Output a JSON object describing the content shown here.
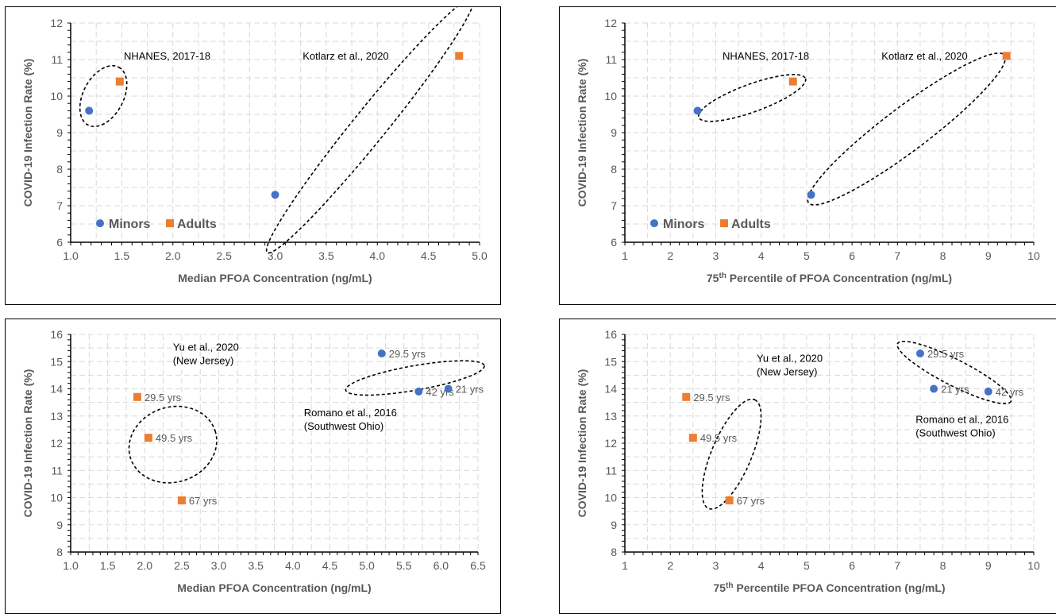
{
  "colors": {
    "minors": "#4472C4",
    "adults": "#ED7D31",
    "grid": "#d9d9d9",
    "axis": "#7f7f7f"
  },
  "chart_data": [
    {
      "type": "scatter",
      "xlabel": "Median PFOA Concentration (ng/mL)",
      "ylabel": "COVID-19 Infection Rate (%)",
      "xlim": [
        1.0,
        5.0
      ],
      "xstep": 0.5,
      "xdec": 1,
      "ylim": [
        6,
        12
      ],
      "ystep": 1,
      "legend": {
        "minors": "Minors",
        "adults": "Adults",
        "placement": "bottom-left"
      },
      "series": [
        {
          "name": "Minors",
          "marker": "circle",
          "points": [
            {
              "x": 1.18,
              "y": 9.6,
              "label": ""
            },
            {
              "x": 3.0,
              "y": 7.3,
              "label": ""
            }
          ]
        },
        {
          "name": "Adults",
          "marker": "square",
          "points": [
            {
              "x": 1.48,
              "y": 10.4,
              "label": ""
            },
            {
              "x": 4.8,
              "y": 11.1,
              "label": ""
            }
          ]
        }
      ],
      "annotations": [
        {
          "lines": [
            "NHANES, 2017-18"
          ],
          "x": 1.52,
          "y": 11.0
        },
        {
          "lines": [
            "Kotlarz et al., 2020"
          ],
          "x": 3.27,
          "y": 11.0
        }
      ],
      "ellipses": [
        {
          "cx": 1.32,
          "cy": 10.0,
          "rx": 0.32,
          "ry": 0.55,
          "angle": -62
        },
        {
          "cx": 3.93,
          "cy": 9.2,
          "rx": 1.6,
          "ry": 0.45,
          "angle": -51
        }
      ]
    },
    {
      "type": "scatter",
      "xlabel_pre": "75",
      "xlabel_sup": "th",
      "xlabel_post": " Percentile of PFOA Concentration (ng/mL)",
      "ylabel": "COVID-19 Infection Rate (%)",
      "xlim": [
        1,
        10
      ],
      "xstep": 1,
      "xdec": 0,
      "ylim": [
        6,
        12
      ],
      "ystep": 1,
      "legend": {
        "minors": "Minors",
        "adults": "Adults",
        "placement": "bottom-left"
      },
      "series": [
        {
          "name": "Minors",
          "marker": "circle",
          "points": [
            {
              "x": 2.6,
              "y": 9.6,
              "label": ""
            },
            {
              "x": 5.1,
              "y": 7.3,
              "label": ""
            }
          ]
        },
        {
          "name": "Adults",
          "marker": "square",
          "points": [
            {
              "x": 4.7,
              "y": 10.4,
              "label": ""
            },
            {
              "x": 9.4,
              "y": 11.1,
              "label": ""
            }
          ]
        }
      ],
      "annotations": [
        {
          "lines": [
            "NHANES, 2017-18"
          ],
          "x": 3.15,
          "y": 11.0
        },
        {
          "lines": [
            "Kotlarz et al., 2020"
          ],
          "x": 6.65,
          "y": 11.0
        }
      ],
      "ellipses": [
        {
          "cx": 3.8,
          "cy": 9.95,
          "rx": 1.25,
          "ry": 0.38,
          "angle": -20
        },
        {
          "cx": 7.2,
          "cy": 9.1,
          "rx": 2.7,
          "ry": 0.6,
          "angle": -37
        }
      ]
    },
    {
      "type": "scatter",
      "xlabel": "Median PFOA Concentration (ng/mL)",
      "ylabel": "COVID-19 Infection Rate (%)",
      "xlim": [
        1.0,
        6.5
      ],
      "xstep": 0.5,
      "xdec": 1,
      "ylim": [
        8,
        16
      ],
      "ystep": 1,
      "series": [
        {
          "name": "Minors",
          "marker": "circle",
          "points": [
            {
              "x": 5.2,
              "y": 15.3,
              "label": "29.5 yrs"
            },
            {
              "x": 5.7,
              "y": 13.9,
              "label": "42 yrs"
            },
            {
              "x": 6.1,
              "y": 14.0,
              "label": "21 yrs"
            }
          ]
        },
        {
          "name": "Adults",
          "marker": "square",
          "points": [
            {
              "x": 1.9,
              "y": 13.7,
              "label": "29.5 yrs"
            },
            {
              "x": 2.05,
              "y": 12.2,
              "label": "49.5 yrs"
            },
            {
              "x": 2.5,
              "y": 9.9,
              "label": "67 yrs"
            }
          ]
        }
      ],
      "annotations": [
        {
          "lines": [
            "Yu et al., 2020",
            "(New Jersey)"
          ],
          "x": 2.38,
          "y": 15.4
        },
        {
          "lines": [
            "Romano et al., 2016",
            "(Southwest Ohio)"
          ],
          "x": 4.15,
          "y": 13.0
        }
      ],
      "ellipses": [
        {
          "cx": 2.38,
          "cy": 11.95,
          "rx": 0.6,
          "ry": 1.38,
          "angle": -18
        },
        {
          "cx": 5.65,
          "cy": 14.4,
          "rx": 0.95,
          "ry": 0.45,
          "angle": -10
        }
      ]
    },
    {
      "type": "scatter",
      "xlabel_pre": "75",
      "xlabel_sup": "th",
      "xlabel_post": " Percentile PFOA Concentration (ng/mL)",
      "ylabel": "COVID-19 Infection Rate (%)",
      "xlim": [
        1,
        10
      ],
      "xstep": 1,
      "xdec": 0,
      "ylim": [
        8,
        16
      ],
      "ystep": 1,
      "series": [
        {
          "name": "Minors",
          "marker": "circle",
          "points": [
            {
              "x": 7.5,
              "y": 15.3,
              "label": "29.5 yrs"
            },
            {
              "x": 7.8,
              "y": 14.0,
              "label": "21 yrs"
            },
            {
              "x": 9.0,
              "y": 13.9,
              "label": "42 yrs"
            }
          ]
        },
        {
          "name": "Adults",
          "marker": "square",
          "points": [
            {
              "x": 2.35,
              "y": 13.7,
              "label": "29.5 yrs"
            },
            {
              "x": 2.5,
              "y": 12.2,
              "label": "49.5 yrs"
            },
            {
              "x": 3.3,
              "y": 9.9,
              "label": "67 yrs"
            }
          ]
        }
      ],
      "annotations": [
        {
          "lines": [
            "Yu et al., 2020",
            "(New Jersey)"
          ],
          "x": 3.9,
          "y": 15.0
        },
        {
          "lines": [
            "Romano et al., 2016",
            "(Southwest Ohio)"
          ],
          "x": 7.4,
          "y": 12.75
        }
      ],
      "ellipses": [
        {
          "cx": 3.35,
          "cy": 11.6,
          "rx": 1.3,
          "ry": 0.73,
          "angle": -67
        },
        {
          "cx": 8.25,
          "cy": 14.6,
          "rx": 1.4,
          "ry": 0.48,
          "angle": 27
        }
      ]
    }
  ]
}
